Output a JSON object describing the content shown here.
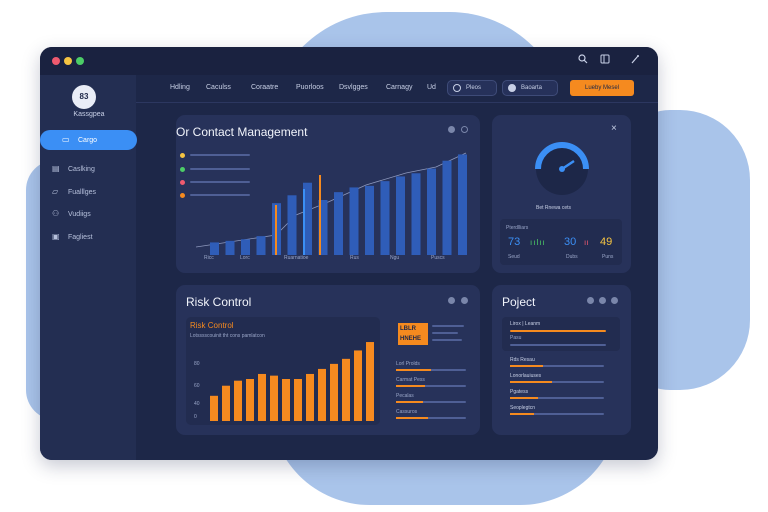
{
  "window": {
    "traffic_lights": [
      "#ef5a6f",
      "#f6c442",
      "#4ccd67"
    ]
  },
  "titlebar": {
    "icons": [
      "search-icon",
      "window-icon",
      "wand-icon"
    ]
  },
  "sidebar": {
    "logo": "83",
    "brand": "Kassgpea",
    "items": [
      {
        "label": "Cargo",
        "icon": "document-icon",
        "active": true
      },
      {
        "label": "Caslking",
        "icon": "chart-icon"
      },
      {
        "label": "Fualllges",
        "icon": "folder-icon"
      },
      {
        "label": "Vudiigs",
        "icon": "users-icon"
      },
      {
        "label": "Fagliest",
        "icon": "image-icon"
      }
    ]
  },
  "nav": {
    "links": [
      "Hdling",
      "Caculss",
      "Coraatre",
      "Puorloos",
      "Dsvlgges",
      "Carnagy",
      "Ud"
    ],
    "pill1": "Pleos",
    "pill2": "Baoarta",
    "button": "Lueby Mesel"
  },
  "contact_card": {
    "title": "Or Contact Management",
    "legend_colors": [
      "#f6c442",
      "#4ccd67",
      "#ef5a6f",
      "#f58a1f"
    ],
    "axis_labels": [
      "Ricc",
      "Lorc",
      "Ruarnatioe",
      "Rus",
      "Ngu",
      "Puscs"
    ]
  },
  "gauge_card": {
    "gauge_label": "Bet Rnewa cets",
    "stat_title": "Pterdlliars",
    "stats": [
      "73",
      "30",
      "49"
    ],
    "stat_captions": [
      "Seud",
      "Dubs",
      "Puns"
    ],
    "accent": "#3b8ff5"
  },
  "risk_card": {
    "title": "Risk Control",
    "subtitle": "Risk Control",
    "caption": "Lotsssscouinit tht cons pamlatcon",
    "axis": [
      "80",
      "60",
      "40",
      "0"
    ],
    "legend_box": "LBLR\nHNEHE",
    "rows": [
      "Lorl Prolds",
      "Carmat Pess",
      "Pecalas",
      "Cassuros"
    ],
    "accent": "#f58a1f"
  },
  "risk_chart": {
    "type": "bar",
    "values": [
      15,
      21,
      24,
      25,
      28,
      27,
      25,
      25,
      28,
      31,
      34,
      37,
      42,
      47
    ],
    "ylim": [
      0,
      50
    ],
    "color": "#f58a1f"
  },
  "contact_chart": {
    "type": "bar",
    "values": [
      8,
      9,
      10,
      12,
      33,
      38,
      46,
      35,
      40,
      43,
      44,
      47,
      50,
      52,
      55,
      60,
      64
    ],
    "ylim": [
      0,
      70
    ],
    "color": "#2f5db8"
  },
  "project_card": {
    "title": "Poject",
    "top_label": "Lirox | Leanm",
    "top_sub": "Pasu",
    "rows": [
      "Rds Resau",
      "Lonorlauiuses",
      "Pgatess",
      "Seoplegtcn"
    ],
    "accent": "#f58a1f"
  }
}
